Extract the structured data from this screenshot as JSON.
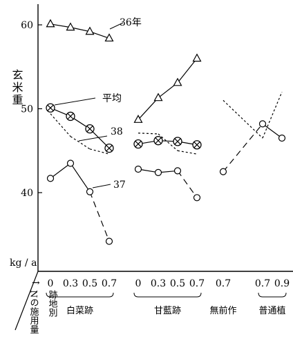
{
  "chart_data": {
    "type": "line",
    "ylabel": "玄米重",
    "yunit": "kg / a",
    "ylim": [
      30,
      62
    ],
    "yticks": [
      40,
      50,
      60
    ],
    "row_label_arrow": "→",
    "row_label_vertical_1": "Nの施用量",
    "row_label_vertical_2": "跡地別",
    "x_tick_labels": [
      "0",
      "0.3",
      "0.5",
      "0.7",
      "0",
      "0.3",
      "0.5",
      "0.7",
      "0.7",
      "0.7",
      "0.9"
    ],
    "groups": [
      {
        "label": "白菜跡",
        "from": 0,
        "to": 3
      },
      {
        "label": "甘藍跡",
        "from": 4,
        "to": 7
      },
      {
        "label": "無前作",
        "from": 8,
        "to": 8
      },
      {
        "label": "普通植",
        "from": 9,
        "to": 10
      }
    ],
    "series": [
      {
        "name": "36年",
        "marker": "triangle",
        "style": "solid",
        "segments": [
          {
            "x": [
              0,
              1,
              2,
              3
            ],
            "y": [
              60.1,
              59.7,
              59.2,
              58.4
            ]
          },
          {
            "x": [
              4,
              5,
              6,
              7
            ],
            "y": [
              48.7,
              51.3,
              53.1,
              56.0
            ]
          }
        ]
      },
      {
        "name": "平均",
        "marker": "circle-cross",
        "style": "solid",
        "segments": [
          {
            "x": [
              0,
              1,
              2,
              3
            ],
            "y": [
              50.1,
              49.1,
              47.6,
              45.3
            ]
          },
          {
            "x": [
              4,
              5,
              6,
              7
            ],
            "y": [
              45.8,
              46.2,
              46.1,
              45.7
            ]
          }
        ]
      },
      {
        "name": "38",
        "marker": "none",
        "style": "dotted",
        "segments": [
          {
            "x": [
              0,
              1,
              2,
              3
            ],
            "y": [
              49.4,
              46.7,
              45.2,
              44.6
            ]
          },
          {
            "x": [
              4,
              5,
              6,
              7
            ],
            "y": [
              47.1,
              47.0,
              45.0,
              44.6
            ]
          },
          {
            "x": [
              8,
              9,
              10
            ],
            "y": [
              51.0,
              46.5,
              52.0
            ]
          }
        ]
      },
      {
        "name": "37",
        "marker": "circle",
        "style": "solid-then-dashed",
        "segments": [
          {
            "x": [
              0,
              1,
              2,
              3
            ],
            "y": [
              41.7,
              43.5,
              40.1,
              34.2
            ],
            "dashed_from": 2
          },
          {
            "x": [
              4,
              5,
              6,
              7
            ],
            "y": [
              42.8,
              42.4,
              42.6,
              39.4
            ],
            "dashed_from": 2
          },
          {
            "x": [
              8,
              9,
              10
            ],
            "y": [
              42.5,
              48.2,
              46.5
            ],
            "dashed_from": 0,
            "dashed_to": 1
          }
        ]
      }
    ],
    "annotations": [
      {
        "text": "36年",
        "series": "36年"
      },
      {
        "text": "平均",
        "series": "平均"
      },
      {
        "text": "38",
        "series": "38"
      },
      {
        "text": "37",
        "series": "37"
      }
    ]
  }
}
